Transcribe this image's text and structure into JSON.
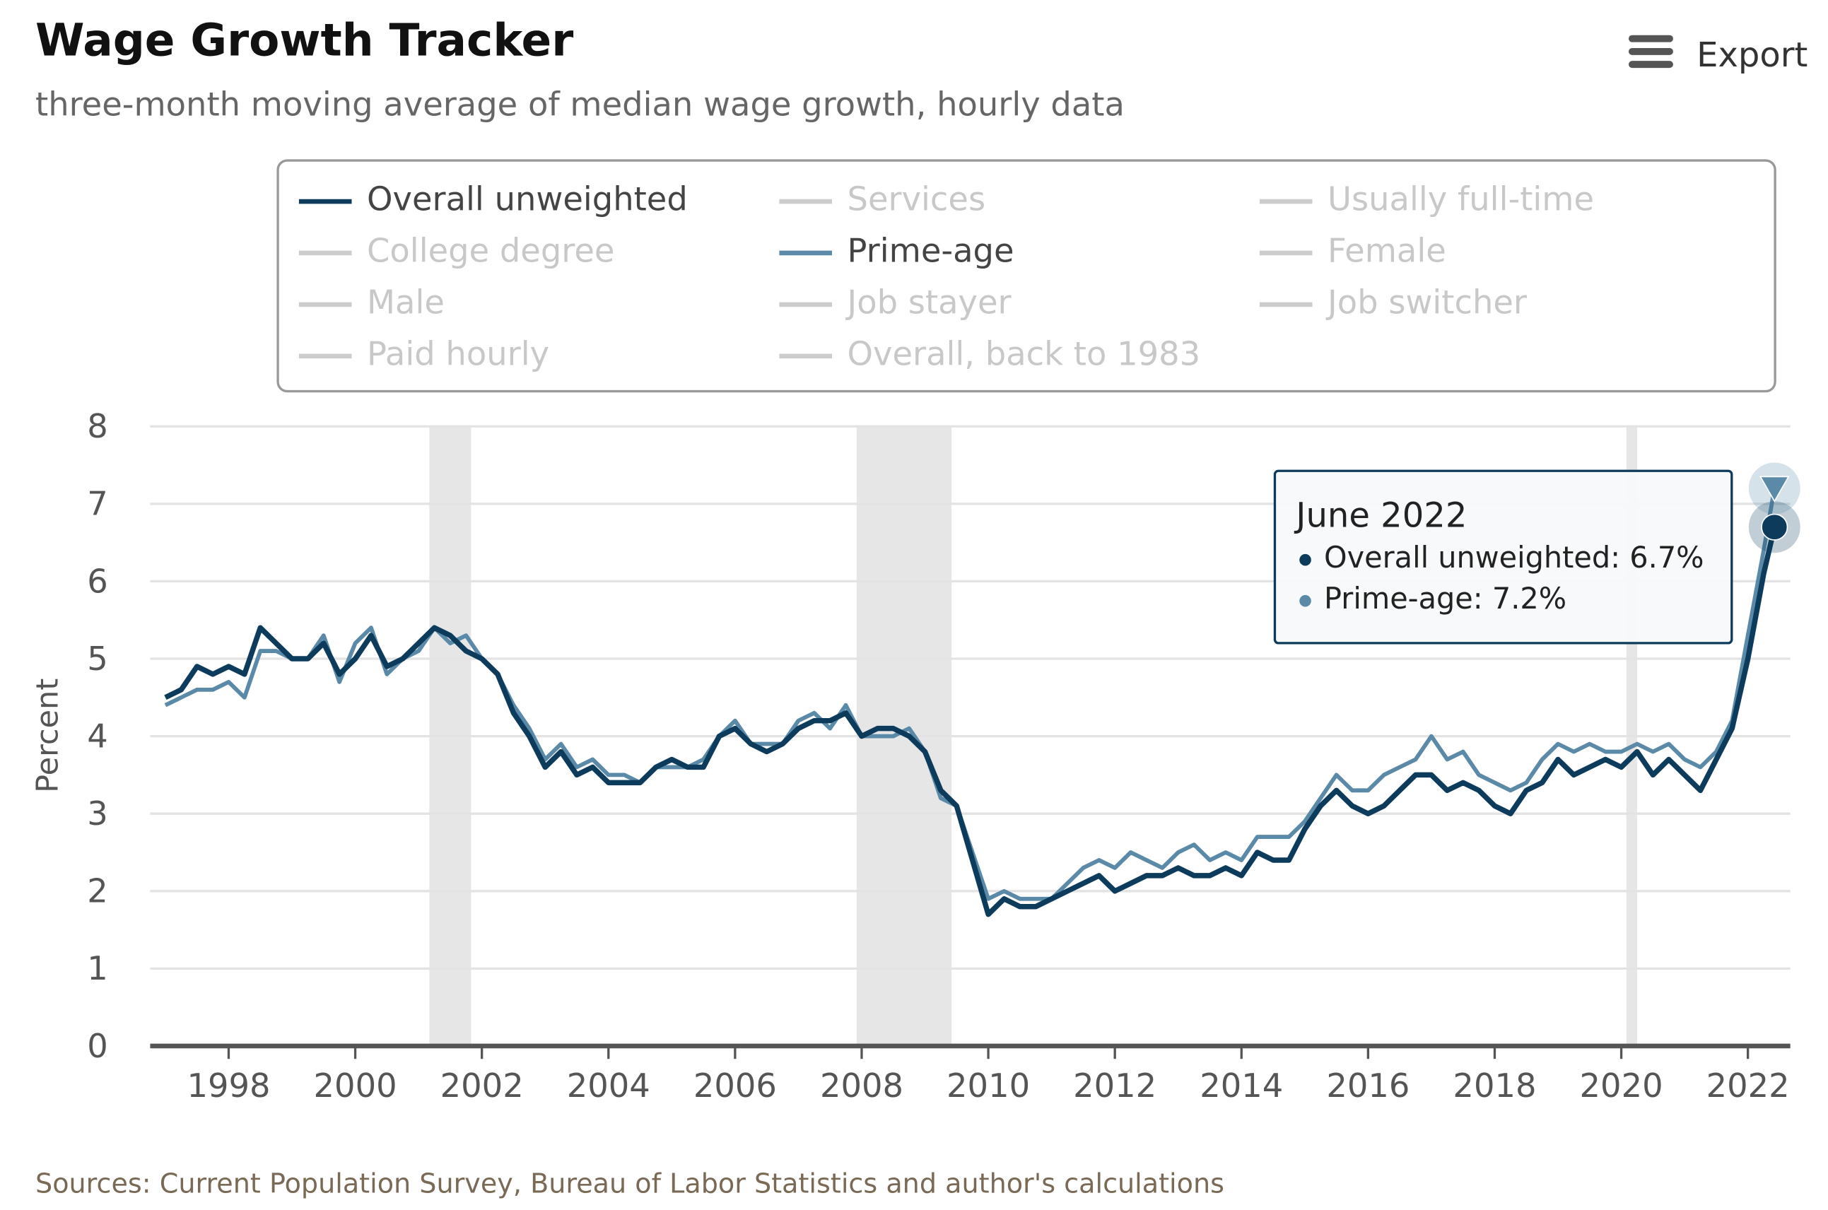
{
  "chart_data": {
    "type": "line",
    "title": "Wage Growth Tracker",
    "subtitle": "three-month moving average of median wage growth, hourly data",
    "y_label": "Percent",
    "source": "Sources: Current Population Survey, Bureau of Labor Statistics and author's calculations",
    "export": "Export",
    "legend": [
      {
        "name": "Overall unweighted",
        "visible": true,
        "color": "#0d3b5c"
      },
      {
        "name": "Services",
        "visible": false,
        "color": "#cccccc"
      },
      {
        "name": "Usually full-time",
        "visible": false,
        "color": "#cccccc"
      },
      {
        "name": "College degree",
        "visible": false,
        "color": "#cccccc"
      },
      {
        "name": "Prime-age",
        "visible": true,
        "color": "#5b8aa8"
      },
      {
        "name": "Female",
        "visible": false,
        "color": "#cccccc"
      },
      {
        "name": "Male",
        "visible": false,
        "color": "#cccccc"
      },
      {
        "name": "Job stayer",
        "visible": false,
        "color": "#cccccc"
      },
      {
        "name": "Job switcher",
        "visible": false,
        "color": "#cccccc"
      },
      {
        "name": "Paid hourly",
        "visible": false,
        "color": "#cccccc"
      },
      {
        "name": "Overall, back to 1983",
        "visible": false,
        "color": "#cccccc"
      }
    ],
    "x": [
      1997.0,
      1997.25,
      1997.5,
      1997.75,
      1998.0,
      1998.25,
      1998.5,
      1998.75,
      1999.0,
      1999.25,
      1999.5,
      1999.75,
      2000.0,
      2000.25,
      2000.5,
      2000.75,
      2001.0,
      2001.25,
      2001.5,
      2001.75,
      2002.0,
      2002.25,
      2002.5,
      2002.75,
      2003.0,
      2003.25,
      2003.5,
      2003.75,
      2004.0,
      2004.25,
      2004.5,
      2004.75,
      2005.0,
      2005.25,
      2005.5,
      2005.75,
      2006.0,
      2006.25,
      2006.5,
      2006.75,
      2007.0,
      2007.25,
      2007.5,
      2007.75,
      2008.0,
      2008.25,
      2008.5,
      2008.75,
      2009.0,
      2009.25,
      2009.5,
      2009.75,
      2010.0,
      2010.25,
      2010.5,
      2010.75,
      2011.0,
      2011.25,
      2011.5,
      2011.75,
      2012.0,
      2012.25,
      2012.5,
      2012.75,
      2013.0,
      2013.25,
      2013.5,
      2013.75,
      2014.0,
      2014.25,
      2014.5,
      2014.75,
      2015.0,
      2015.25,
      2015.5,
      2015.75,
      2016.0,
      2016.25,
      2016.5,
      2016.75,
      2017.0,
      2017.25,
      2017.5,
      2017.75,
      2018.0,
      2018.25,
      2018.5,
      2018.75,
      2019.0,
      2019.25,
      2019.5,
      2019.75,
      2020.0,
      2020.25,
      2020.5,
      2020.75,
      2021.0,
      2021.25,
      2021.5,
      2021.75,
      2022.0,
      2022.25,
      2022.42
    ],
    "series": [
      {
        "name": "Overall unweighted",
        "color": "#0d3b5c",
        "marker": "circle",
        "values": [
          4.5,
          4.6,
          4.9,
          4.8,
          4.9,
          4.8,
          5.4,
          5.2,
          5.0,
          5.0,
          5.2,
          4.8,
          5.0,
          5.3,
          4.9,
          5.0,
          5.2,
          5.4,
          5.3,
          5.1,
          5.0,
          4.8,
          4.3,
          4.0,
          3.6,
          3.8,
          3.5,
          3.6,
          3.4,
          3.4,
          3.4,
          3.6,
          3.7,
          3.6,
          3.6,
          4.0,
          4.1,
          3.9,
          3.8,
          3.9,
          4.1,
          4.2,
          4.2,
          4.3,
          4.0,
          4.1,
          4.1,
          4.0,
          3.8,
          3.3,
          3.1,
          2.4,
          1.7,
          1.9,
          1.8,
          1.8,
          1.9,
          2.0,
          2.1,
          2.2,
          2.0,
          2.1,
          2.2,
          2.2,
          2.3,
          2.2,
          2.2,
          2.3,
          2.2,
          2.5,
          2.4,
          2.4,
          2.8,
          3.1,
          3.3,
          3.1,
          3.0,
          3.1,
          3.3,
          3.5,
          3.5,
          3.3,
          3.4,
          3.3,
          3.1,
          3.0,
          3.3,
          3.4,
          3.7,
          3.5,
          3.6,
          3.7,
          3.6,
          3.8,
          3.5,
          3.7,
          3.5,
          3.3,
          3.7,
          4.1,
          5.0,
          6.1,
          6.7
        ]
      },
      {
        "name": "Prime-age",
        "color": "#5b8aa8",
        "marker": "triangle-down",
        "values": [
          4.4,
          4.5,
          4.6,
          4.6,
          4.7,
          4.5,
          5.1,
          5.1,
          5.0,
          5.0,
          5.3,
          4.7,
          5.2,
          5.4,
          4.8,
          5.0,
          5.1,
          5.4,
          5.2,
          5.3,
          5.0,
          4.8,
          4.4,
          4.1,
          3.7,
          3.9,
          3.6,
          3.7,
          3.5,
          3.5,
          3.4,
          3.6,
          3.6,
          3.6,
          3.7,
          4.0,
          4.2,
          3.9,
          3.9,
          3.9,
          4.2,
          4.3,
          4.1,
          4.4,
          4.0,
          4.0,
          4.0,
          4.1,
          3.8,
          3.2,
          3.1,
          2.5,
          1.9,
          2.0,
          1.9,
          1.9,
          1.9,
          2.1,
          2.3,
          2.4,
          2.3,
          2.5,
          2.4,
          2.3,
          2.5,
          2.6,
          2.4,
          2.5,
          2.4,
          2.7,
          2.7,
          2.7,
          2.9,
          3.2,
          3.5,
          3.3,
          3.3,
          3.5,
          3.6,
          3.7,
          4.0,
          3.7,
          3.8,
          3.5,
          3.4,
          3.3,
          3.4,
          3.7,
          3.9,
          3.8,
          3.9,
          3.8,
          3.8,
          3.9,
          3.8,
          3.9,
          3.7,
          3.6,
          3.8,
          4.2,
          5.3,
          6.4,
          7.2
        ]
      }
    ],
    "recessions": [
      [
        2001.17,
        2001.83
      ],
      [
        2007.92,
        2009.42
      ],
      [
        2020.08,
        2020.25
      ]
    ],
    "tooltip": {
      "title": "June 2022",
      "items": [
        "Overall unweighted: 6.7%",
        "Prime-age: 7.2%"
      ]
    },
    "xlim": [
      1996.76,
      2022.67
    ],
    "xticks": [
      1998,
      2000,
      2002,
      2004,
      2006,
      2008,
      2010,
      2012,
      2014,
      2016,
      2018,
      2020,
      2022
    ],
    "ylim": [
      0,
      8
    ],
    "yticks": [
      0,
      1,
      2,
      3,
      4,
      5,
      6,
      7,
      8
    ],
    "grid": true
  }
}
